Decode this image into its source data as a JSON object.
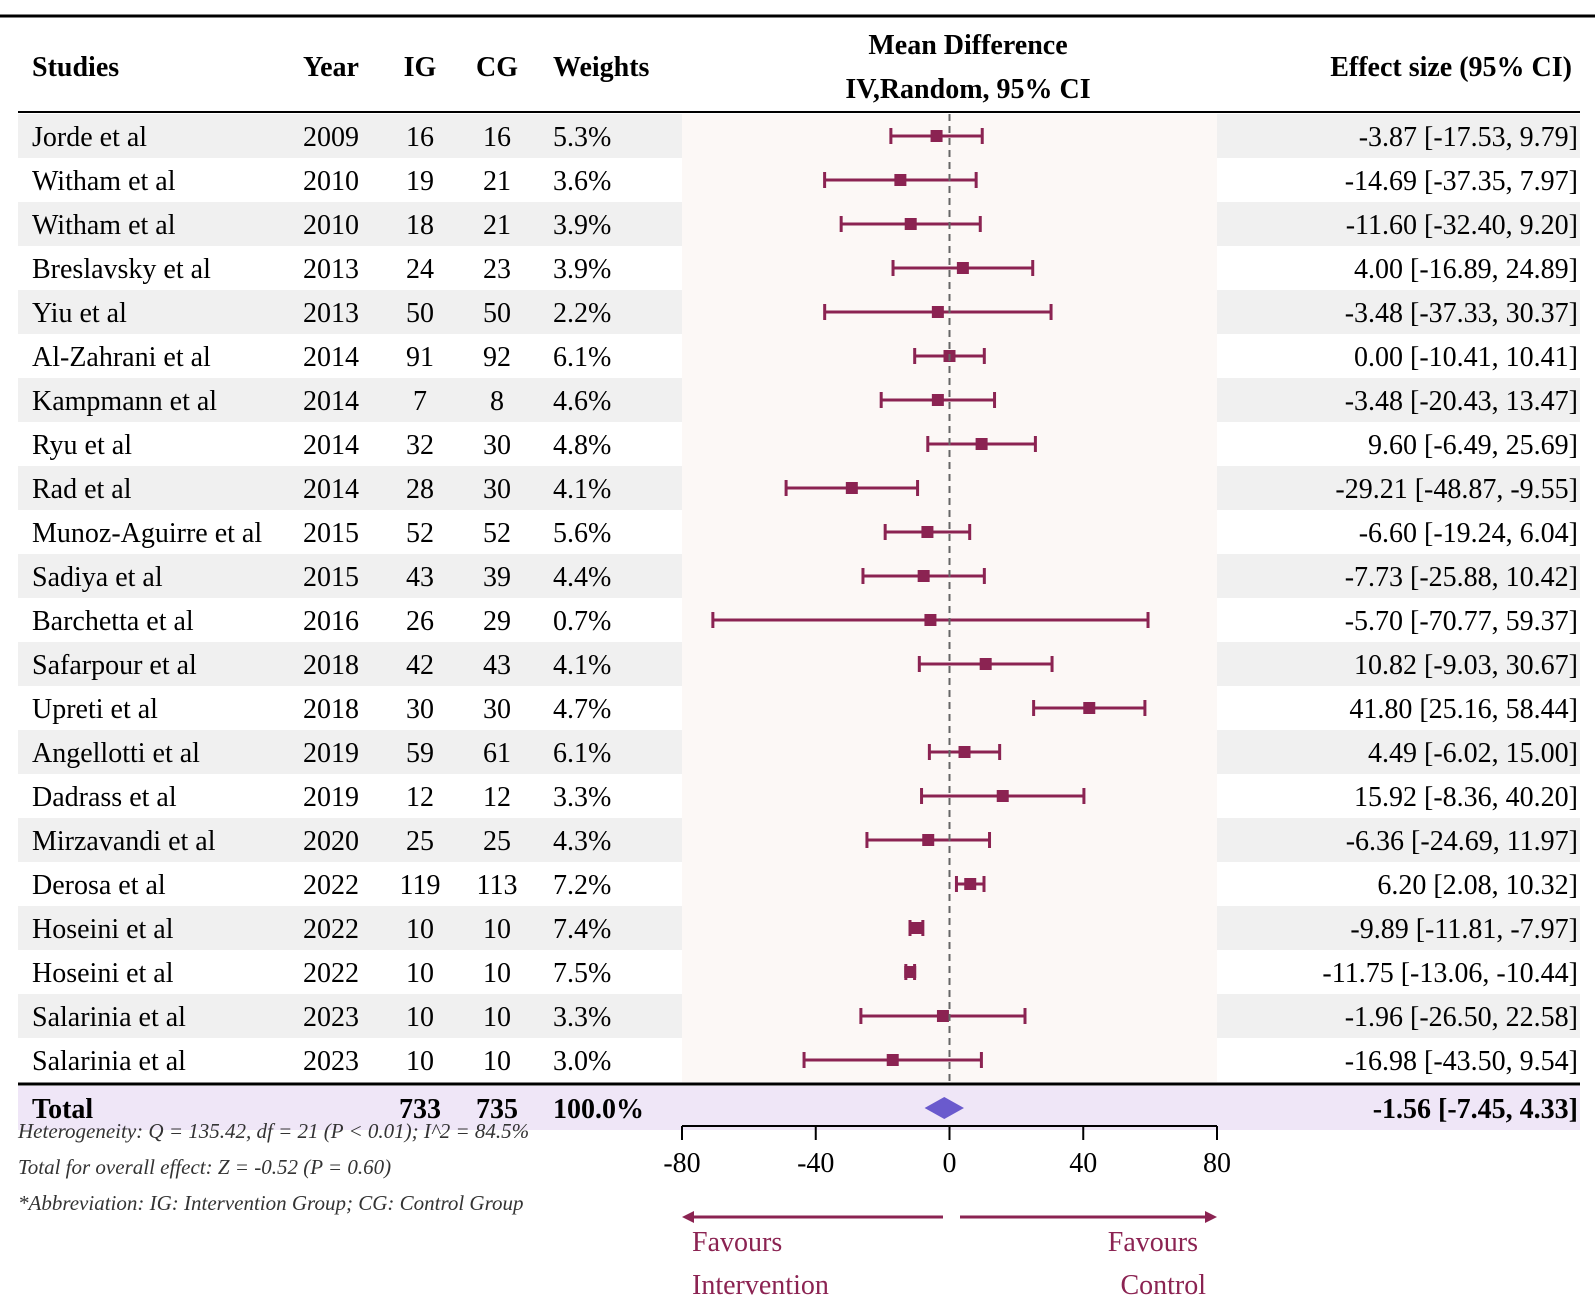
{
  "chart_data": {
    "type": "forest",
    "header": {
      "studies": "Studies",
      "year": "Year",
      "ig": "IG",
      "cg": "CG",
      "weights": "Weights",
      "md_line1": "Mean Difference",
      "md_line2": "IV,Random, 95% CI",
      "effect": "Effect size (95% CI)"
    },
    "studies": [
      {
        "name": "Jorde et al",
        "year": "2009",
        "ig": "16",
        "cg": "16",
        "weight": "5.3%",
        "md": -3.87,
        "lo": -17.53,
        "hi": 9.79,
        "label": "-3.87 [-17.53, 9.79]"
      },
      {
        "name": "Witham et al",
        "year": "2010",
        "ig": "19",
        "cg": "21",
        "weight": "3.6%",
        "md": -14.69,
        "lo": -37.35,
        "hi": 7.97,
        "label": "-14.69 [-37.35, 7.97]"
      },
      {
        "name": "Witham et al",
        "year": "2010",
        "ig": "18",
        "cg": "21",
        "weight": "3.9%",
        "md": -11.6,
        "lo": -32.4,
        "hi": 9.2,
        "label": "-11.60 [-32.40, 9.20]"
      },
      {
        "name": "Breslavsky et al",
        "year": "2013",
        "ig": "24",
        "cg": "23",
        "weight": "3.9%",
        "md": 4.0,
        "lo": -16.89,
        "hi": 24.89,
        "label": "4.00 [-16.89, 24.89]"
      },
      {
        "name": "Yiu et al",
        "year": "2013",
        "ig": "50",
        "cg": "50",
        "weight": "2.2%",
        "md": -3.48,
        "lo": -37.33,
        "hi": 30.37,
        "label": "-3.48 [-37.33, 30.37]"
      },
      {
        "name": "Al-Zahrani et al",
        "year": "2014",
        "ig": "91",
        "cg": "92",
        "weight": "6.1%",
        "md": 0.0,
        "lo": -10.41,
        "hi": 10.41,
        "label": "0.00 [-10.41, 10.41]"
      },
      {
        "name": "Kampmann et al",
        "year": "2014",
        "ig": "7",
        "cg": "8",
        "weight": "4.6%",
        "md": -3.48,
        "lo": -20.43,
        "hi": 13.47,
        "label": "-3.48 [-20.43, 13.47]"
      },
      {
        "name": "Ryu et al",
        "year": "2014",
        "ig": "32",
        "cg": "30",
        "weight": "4.8%",
        "md": 9.6,
        "lo": -6.49,
        "hi": 25.69,
        "label": "9.60 [-6.49, 25.69]"
      },
      {
        "name": "Rad et al",
        "year": "2014",
        "ig": "28",
        "cg": "30",
        "weight": "4.1%",
        "md": -29.21,
        "lo": -48.87,
        "hi": -9.55,
        "label": "-29.21 [-48.87, -9.55]"
      },
      {
        "name": "Munoz-Aguirre et al",
        "year": "2015",
        "ig": "52",
        "cg": "52",
        "weight": "5.6%",
        "md": -6.6,
        "lo": -19.24,
        "hi": 6.04,
        "label": "-6.60 [-19.24, 6.04]"
      },
      {
        "name": "Sadiya et al",
        "year": "2015",
        "ig": "43",
        "cg": "39",
        "weight": "4.4%",
        "md": -7.73,
        "lo": -25.88,
        "hi": 10.42,
        "label": "-7.73 [-25.88, 10.42]"
      },
      {
        "name": "Barchetta et al",
        "year": "2016",
        "ig": "26",
        "cg": "29",
        "weight": "0.7%",
        "md": -5.7,
        "lo": -70.77,
        "hi": 59.37,
        "label": "-5.70 [-70.77, 59.37]"
      },
      {
        "name": "Safarpour et al",
        "year": "2018",
        "ig": "42",
        "cg": "43",
        "weight": "4.1%",
        "md": 10.82,
        "lo": -9.03,
        "hi": 30.67,
        "label": "10.82 [-9.03, 30.67]"
      },
      {
        "name": "Upreti et al",
        "year": "2018",
        "ig": "30",
        "cg": "30",
        "weight": "4.7%",
        "md": 41.8,
        "lo": 25.16,
        "hi": 58.44,
        "label": "41.80 [25.16, 58.44]"
      },
      {
        "name": "Angellotti et al",
        "year": "2019",
        "ig": "59",
        "cg": "61",
        "weight": "6.1%",
        "md": 4.49,
        "lo": -6.02,
        "hi": 15.0,
        "label": "4.49 [-6.02, 15.00]"
      },
      {
        "name": "Dadrass et al",
        "year": "2019",
        "ig": "12",
        "cg": "12",
        "weight": "3.3%",
        "md": 15.92,
        "lo": -8.36,
        "hi": 40.2,
        "label": "15.92 [-8.36, 40.20]"
      },
      {
        "name": "Mirzavandi et al",
        "year": "2020",
        "ig": "25",
        "cg": "25",
        "weight": "4.3%",
        "md": -6.36,
        "lo": -24.69,
        "hi": 11.97,
        "label": "-6.36 [-24.69, 11.97]"
      },
      {
        "name": "Derosa et al",
        "year": "2022",
        "ig": "119",
        "cg": "113",
        "weight": "7.2%",
        "md": 6.2,
        "lo": 2.08,
        "hi": 10.32,
        "label": "6.20 [2.08, 10.32]"
      },
      {
        "name": "Hoseini et al",
        "year": "2022",
        "ig": "10",
        "cg": "10",
        "weight": "7.4%",
        "md": -9.89,
        "lo": -11.81,
        "hi": -7.97,
        "label": "-9.89 [-11.81, -7.97]"
      },
      {
        "name": "Hoseini et al",
        "year": "2022",
        "ig": "10",
        "cg": "10",
        "weight": "7.5%",
        "md": -11.75,
        "lo": -13.06,
        "hi": -10.44,
        "label": "-11.75 [-13.06, -10.44]"
      },
      {
        "name": "Salarinia et al",
        "year": "2023",
        "ig": "10",
        "cg": "10",
        "weight": "3.3%",
        "md": -1.96,
        "lo": -26.5,
        "hi": 22.58,
        "label": "-1.96 [-26.50, 22.58]"
      },
      {
        "name": "Salarinia et al",
        "year": "2023",
        "ig": "10",
        "cg": "10",
        "weight": "3.0%",
        "md": -16.98,
        "lo": -43.5,
        "hi": 9.54,
        "label": "-16.98 [-43.50, 9.54]"
      }
    ],
    "total": {
      "name": "Total",
      "ig": "733",
      "cg": "735",
      "weight": "100.0%",
      "md": -1.56,
      "lo": -7.45,
      "hi": 4.33,
      "label": "-1.56 [-7.45, 4.33]"
    },
    "xlim": [
      -80,
      80
    ],
    "xticks": [
      -80,
      -40,
      0,
      40,
      80
    ],
    "footnotes": [
      "Heterogeneity: Q = 135.42, df = 21 (P < 0.01); I^2 = 84.5%",
      "Total for overall effect: Z = -0.52 (P = 0.60)",
      "*Abbreviation: IG: Intervention Group; CG: Control Group"
    ],
    "favours_left": [
      "Favours",
      "Intervention"
    ],
    "favours_right": [
      "Favours",
      "Control"
    ]
  },
  "colors": {
    "marker": "#8b2352",
    "diamond": "#6a5acd",
    "stripe": "#f0f0f0",
    "panel": "#fcf8f6",
    "total_band": "#efe6f7"
  }
}
